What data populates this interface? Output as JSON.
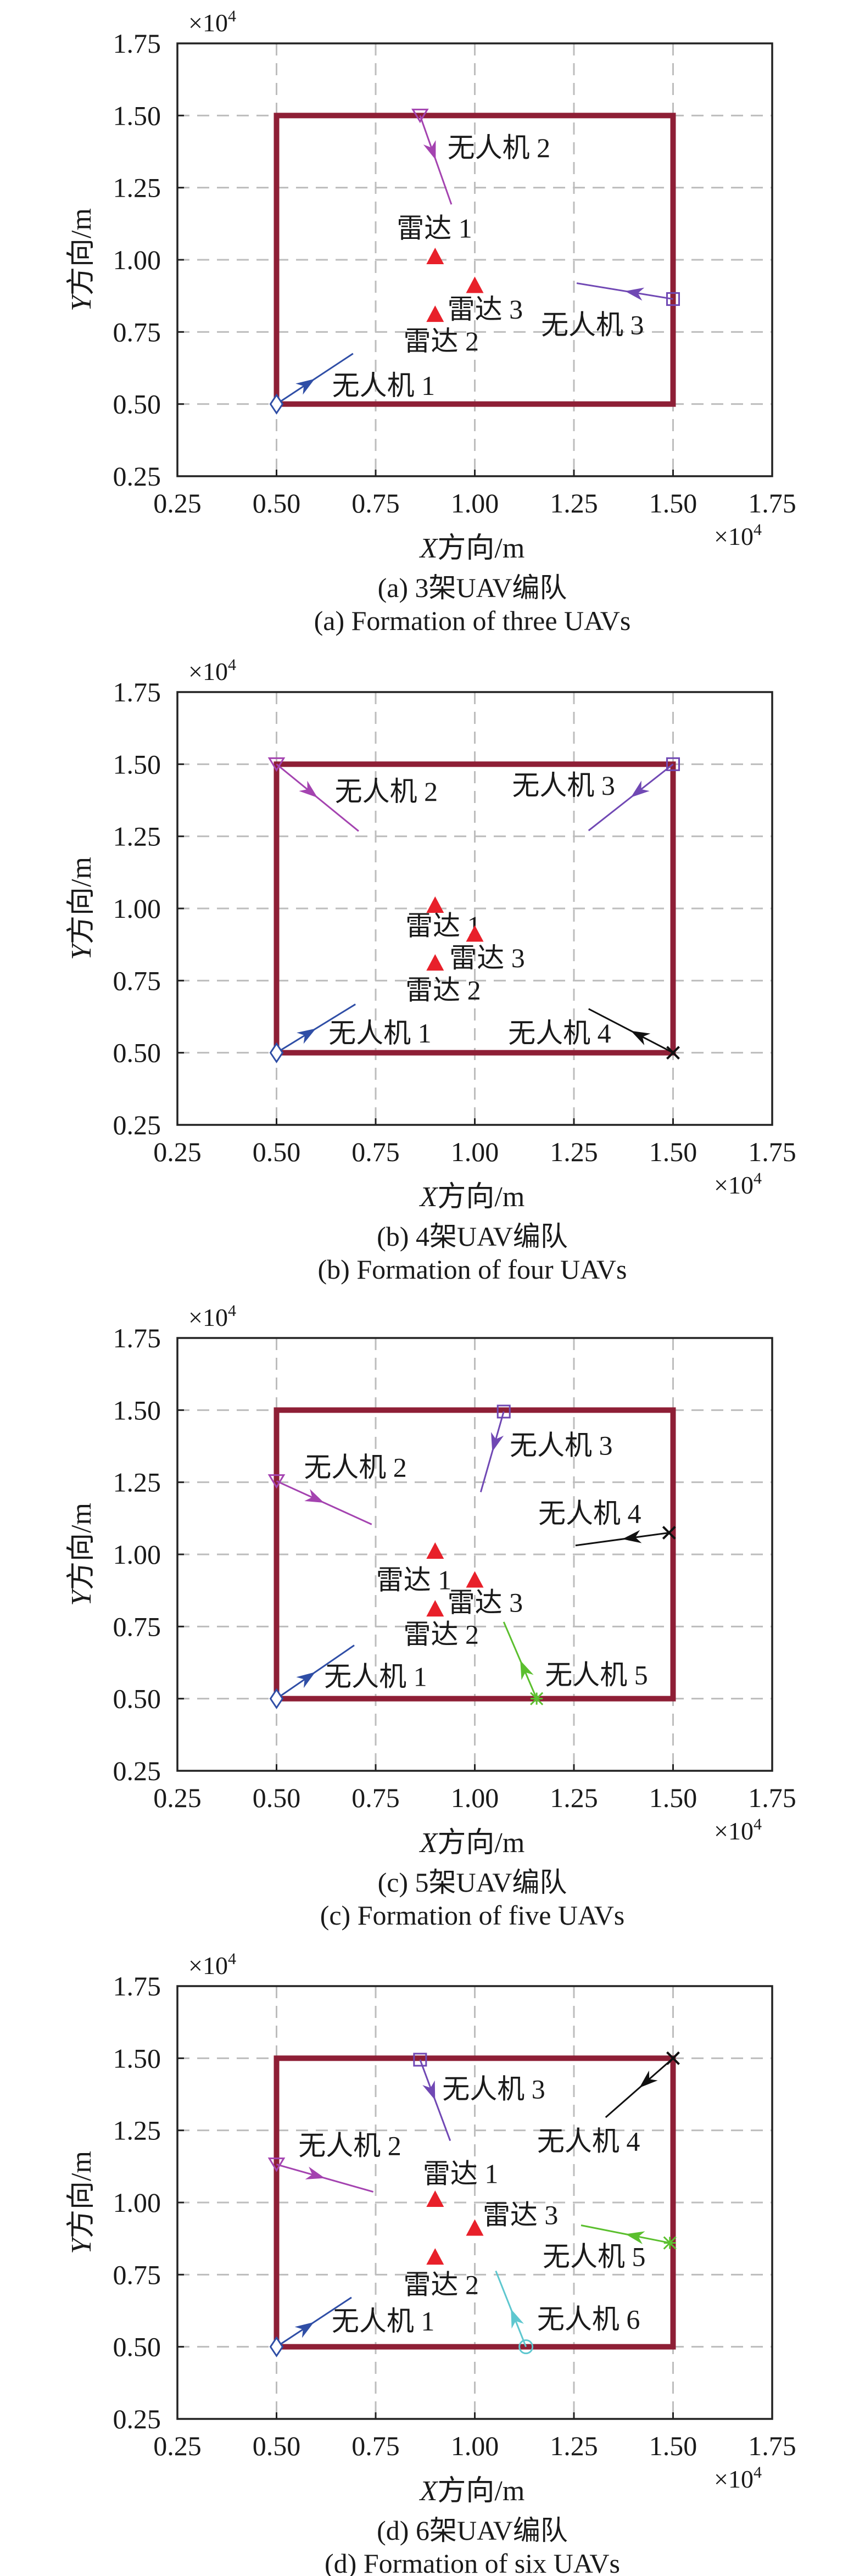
{
  "colors": {
    "frame": "#8e1f36",
    "radar": "#e8202a",
    "grid": "#bdbdbd",
    "uav1": "#2f4ea6",
    "uav2": "#a443b0",
    "uav3": "#7048b4",
    "uav4": "#111111",
    "uav5": "#5bbf2e",
    "uav6": "#5ec7cf"
  },
  "chart_data": [
    {
      "type": "scatter",
      "panel": "a",
      "caption_cn": "(a) 3架UAV编队",
      "caption_en": "(a) Formation of three UAVs",
      "xlabel": {
        "var": "X",
        "text": "方向/m"
      },
      "ylabel": {
        "var": "Y",
        "text": "方向/m"
      },
      "exponent": {
        "base": "×10",
        "power": "4"
      },
      "xlim": [
        0.25,
        1.75
      ],
      "ylim": [
        0.25,
        1.75
      ],
      "xticks": [
        "0.25",
        "0.50",
        "0.75",
        "1.00",
        "1.25",
        "1.50",
        "1.75"
      ],
      "yticks": [
        "0.25",
        "0.50",
        "0.75",
        "1.00",
        "1.25",
        "1.50",
        "1.75"
      ],
      "grid": true,
      "frame": [
        0.5,
        1.5,
        0.5,
        1.5
      ],
      "radars": [
        {
          "name": "雷达 1",
          "x": 0.9,
          "y": 1.0,
          "label": [
            0.803,
            1.111
          ]
        },
        {
          "name": "雷达 2",
          "x": 0.9,
          "y": 0.8,
          "label": [
            0.82,
            0.72
          ]
        },
        {
          "name": "雷达 3",
          "x": 1.0,
          "y": 0.9,
          "label": [
            0.931,
            0.831
          ]
        }
      ],
      "uavs": [
        {
          "name": "无人机 1",
          "color": "uav1",
          "marker": "diamond",
          "start": [
            0.5,
            0.5
          ],
          "end": [
            0.693,
            0.675
          ],
          "label": [
            0.64,
            0.566
          ]
        },
        {
          "name": "无人机 2",
          "color": "uav2",
          "marker": "triangle-down",
          "start": [
            0.862,
            1.5
          ],
          "end": [
            0.941,
            1.192
          ],
          "label": [
            0.931,
            1.39
          ]
        },
        {
          "name": "无人机 3",
          "color": "uav3",
          "marker": "square",
          "start": [
            1.5,
            0.864
          ],
          "end": [
            1.257,
            0.919
          ],
          "label": [
            1.167,
            0.776
          ]
        }
      ]
    },
    {
      "type": "scatter",
      "panel": "b",
      "caption_cn": "(b) 4架UAV编队",
      "caption_en": "(b) Formation of four UAVs",
      "xlabel": {
        "var": "X",
        "text": "方向/m"
      },
      "ylabel": {
        "var": "Y",
        "text": "方向/m"
      },
      "exponent": {
        "base": "×10",
        "power": "4"
      },
      "xlim": [
        0.25,
        1.75
      ],
      "ylim": [
        0.25,
        1.75
      ],
      "xticks": [
        "0.25",
        "0.50",
        "0.75",
        "1.00",
        "1.25",
        "1.50",
        "1.75"
      ],
      "yticks": [
        "0.25",
        "0.50",
        "0.75",
        "1.00",
        "1.25",
        "1.50",
        "1.75"
      ],
      "grid": true,
      "frame": [
        0.5,
        1.5,
        0.5,
        1.5
      ],
      "radars": [
        {
          "name": "雷达 1",
          "x": 0.9,
          "y": 1.0,
          "label": [
            0.825,
            0.942
          ]
        },
        {
          "name": "雷达 2",
          "x": 0.9,
          "y": 0.8,
          "label": [
            0.825,
            0.719
          ]
        },
        {
          "name": "雷达 3",
          "x": 1.0,
          "y": 0.9,
          "label": [
            0.936,
            0.831
          ]
        }
      ],
      "uavs": [
        {
          "name": "无人机 1",
          "color": "uav1",
          "marker": "diamond",
          "start": [
            0.5,
            0.5
          ],
          "end": [
            0.699,
            0.668
          ],
          "label": [
            0.631,
            0.57
          ]
        },
        {
          "name": "无人机 2",
          "color": "uav2",
          "marker": "triangle-down",
          "start": [
            0.5,
            1.5
          ],
          "end": [
            0.707,
            1.268
          ],
          "label": [
            0.647,
            1.407
          ]
        },
        {
          "name": "无人机 3",
          "color": "uav3",
          "marker": "square",
          "start": [
            1.5,
            1.5
          ],
          "end": [
            1.287,
            1.27
          ],
          "label": [
            1.094,
            1.428
          ]
        },
        {
          "name": "无人机 4",
          "color": "uav4",
          "marker": "x",
          "start": [
            1.5,
            0.5
          ],
          "end": [
            1.287,
            0.652
          ],
          "label": [
            1.084,
            0.57
          ]
        }
      ]
    },
    {
      "type": "scatter",
      "panel": "c",
      "caption_cn": "(c) 5架UAV编队",
      "caption_en": "(c) Formation of five UAVs",
      "xlabel": {
        "var": "X",
        "text": "方向/m"
      },
      "ylabel": {
        "var": "Y",
        "text": "方向/m"
      },
      "exponent": {
        "base": "×10",
        "power": "4"
      },
      "xlim": [
        0.25,
        1.75
      ],
      "ylim": [
        0.25,
        1.75
      ],
      "xticks": [
        "0.25",
        "0.50",
        "0.75",
        "1.00",
        "1.25",
        "1.50",
        "1.75"
      ],
      "yticks": [
        "0.25",
        "0.50",
        "0.75",
        "1.00",
        "1.25",
        "1.50",
        "1.75"
      ],
      "grid": true,
      "frame": [
        0.5,
        1.5,
        0.5,
        1.5
      ],
      "radars": [
        {
          "name": "雷达 1",
          "x": 0.9,
          "y": 1.0,
          "label": [
            0.751,
            0.913
          ]
        },
        {
          "name": "雷达 2",
          "x": 0.9,
          "y": 0.8,
          "label": [
            0.82,
            0.725
          ]
        },
        {
          "name": "雷达 3",
          "x": 1.0,
          "y": 0.9,
          "label": [
            0.931,
            0.835
          ]
        }
      ],
      "uavs": [
        {
          "name": "无人机 1",
          "color": "uav1",
          "marker": "diamond",
          "start": [
            0.5,
            0.5
          ],
          "end": [
            0.696,
            0.685
          ],
          "label": [
            0.62,
            0.578
          ]
        },
        {
          "name": "无人机 2",
          "color": "uav2",
          "marker": "triangle-down",
          "start": [
            0.5,
            1.254
          ],
          "end": [
            0.74,
            1.104
          ],
          "label": [
            0.569,
            1.304
          ]
        },
        {
          "name": "无人机 3",
          "color": "uav3",
          "marker": "square",
          "start": [
            1.073,
            1.495
          ],
          "end": [
            1.015,
            1.216
          ],
          "label": [
            1.088,
            1.38
          ]
        },
        {
          "name": "无人机 4",
          "color": "uav4",
          "marker": "x",
          "start": [
            1.49,
            1.075
          ],
          "end": [
            1.254,
            1.031
          ],
          "label": [
            1.16,
            1.144
          ]
        },
        {
          "name": "无人机 5",
          "color": "uav5",
          "marker": "asterisk",
          "start": [
            1.156,
            0.5
          ],
          "end": [
            1.073,
            0.766
          ],
          "label": [
            1.177,
            0.584
          ]
        }
      ]
    },
    {
      "type": "scatter",
      "panel": "d",
      "caption_cn": "(d) 6架UAV编队",
      "caption_en": "(d) Formation of six UAVs",
      "xlabel": {
        "var": "X",
        "text": "方向/m"
      },
      "ylabel": {
        "var": "Y",
        "text": "方向/m"
      },
      "exponent": {
        "base": "×10",
        "power": "4"
      },
      "xlim": [
        0.25,
        1.75
      ],
      "ylim": [
        0.25,
        1.75
      ],
      "xticks": [
        "0.25",
        "0.50",
        "0.75",
        "1.00",
        "1.25",
        "1.50",
        "1.75"
      ],
      "yticks": [
        "0.25",
        "0.50",
        "0.75",
        "1.00",
        "1.25",
        "1.50",
        "1.75"
      ],
      "grid": true,
      "frame": [
        0.5,
        1.5,
        0.5,
        1.5
      ],
      "radars": [
        {
          "name": "雷达 1",
          "x": 0.9,
          "y": 1.0,
          "label": [
            0.869,
            1.102
          ]
        },
        {
          "name": "雷达 2",
          "x": 0.9,
          "y": 0.8,
          "label": [
            0.82,
            0.717
          ]
        },
        {
          "name": "雷达 3",
          "x": 1.0,
          "y": 0.9,
          "label": [
            1.02,
            0.959
          ]
        }
      ],
      "uavs": [
        {
          "name": "无人机 1",
          "color": "uav1",
          "marker": "diamond",
          "start": [
            0.5,
            0.5
          ],
          "end": [
            0.689,
            0.671
          ],
          "label": [
            0.639,
            0.591
          ]
        },
        {
          "name": "无人机 2",
          "color": "uav2",
          "marker": "triangle-down",
          "start": [
            0.5,
            1.132
          ],
          "end": [
            0.744,
            1.037
          ],
          "label": [
            0.555,
            1.199
          ]
        },
        {
          "name": "无人机 3",
          "color": "uav3",
          "marker": "square",
          "start": [
            0.862,
            1.495
          ],
          "end": [
            0.938,
            1.214
          ],
          "label": [
            0.918,
            1.395
          ]
        },
        {
          "name": "无人机 4",
          "color": "uav4",
          "marker": "x",
          "start": [
            1.5,
            1.5
          ],
          "end": [
            1.33,
            1.295
          ],
          "label": [
            1.157,
            1.214
          ]
        },
        {
          "name": "无人机 5",
          "color": "uav5",
          "marker": "asterisk",
          "start": [
            1.492,
            0.86
          ],
          "end": [
            1.268,
            0.921
          ],
          "label": [
            1.171,
            0.814
          ]
        },
        {
          "name": "无人机 6",
          "color": "uav6",
          "marker": "circle",
          "start": [
            1.129,
            0.5
          ],
          "end": [
            1.053,
            0.763
          ],
          "label": [
            1.157,
            0.597
          ]
        }
      ]
    }
  ]
}
